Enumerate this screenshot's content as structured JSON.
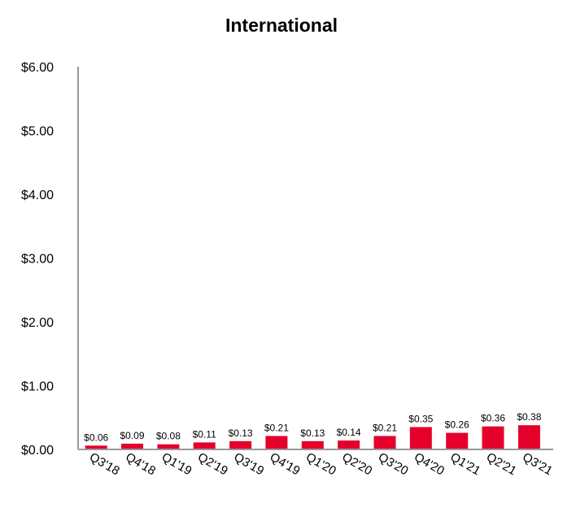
{
  "chart_data": {
    "type": "bar",
    "title": "International",
    "xlabel": "",
    "ylabel": "",
    "categories": [
      "Q3'18",
      "Q4'18",
      "Q1'19",
      "Q2'19",
      "Q3'19",
      "Q4'19",
      "Q1'20",
      "Q2'20",
      "Q3'20",
      "Q4'20",
      "Q1'21",
      "Q2'21",
      "Q3'21"
    ],
    "values": [
      0.06,
      0.09,
      0.08,
      0.11,
      0.13,
      0.21,
      0.13,
      0.14,
      0.21,
      0.35,
      0.26,
      0.36,
      0.38
    ],
    "data_labels": [
      "$0.06",
      "$0.09",
      "$0.08",
      "$0.11",
      "$0.13",
      "$0.21",
      "$0.13",
      "$0.14",
      "$0.21",
      "$0.35",
      "$0.26",
      "$0.36",
      "$0.38"
    ],
    "ylim": [
      0,
      6
    ],
    "yticks": [
      0,
      1,
      2,
      3,
      4,
      5,
      6
    ],
    "ytick_labels": [
      "$0.00",
      "$1.00",
      "$2.00",
      "$3.00",
      "$4.00",
      "$5.00",
      "$6.00"
    ],
    "grid": false,
    "legend": "none",
    "bar_color": "#e4002b",
    "axis_color": "#999999"
  }
}
